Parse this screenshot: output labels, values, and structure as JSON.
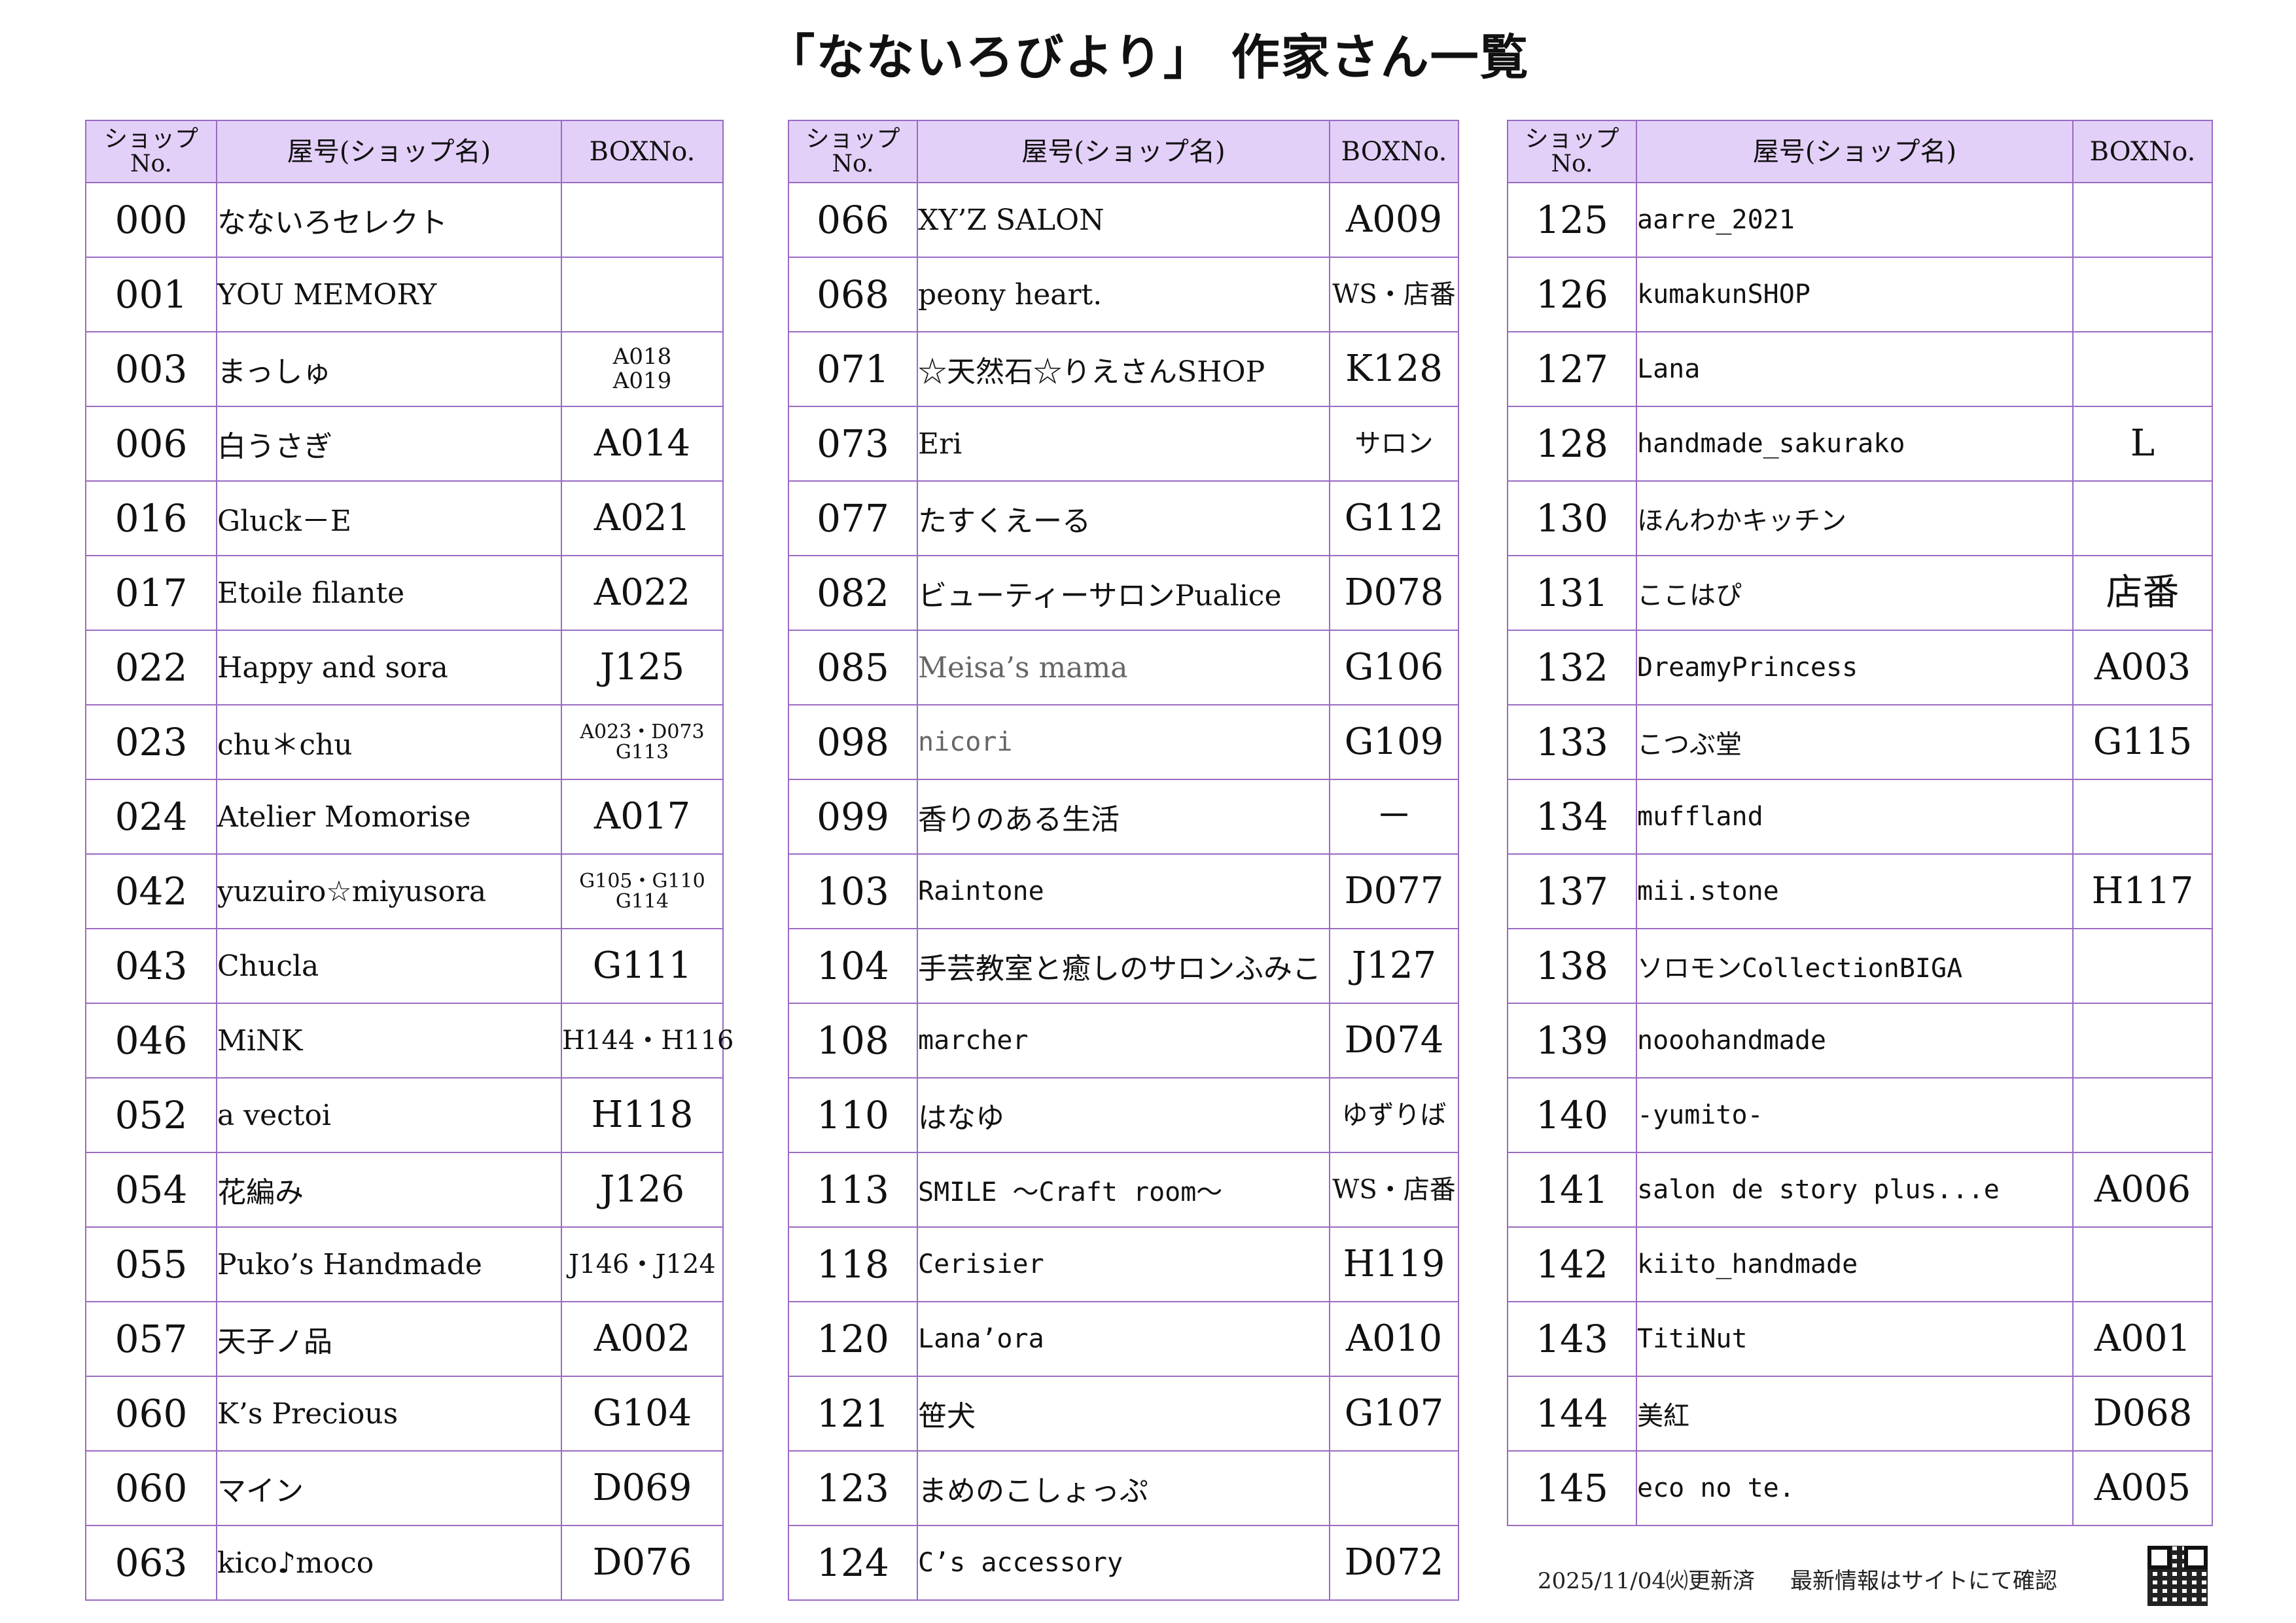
{
  "title": "「なないろびより」 作家さん一覧",
  "headers": {
    "shop_no": [
      "ショップ",
      "No."
    ],
    "name": "屋号(ショップ名)",
    "box": "BOXNo."
  },
  "columns": [
    {
      "rows": [
        {
          "no": "000",
          "name": "なないろセレクト",
          "box": ""
        },
        {
          "no": "001",
          "name": "YOU MEMORY",
          "box": ""
        },
        {
          "no": "003",
          "name": "まっしゅ",
          "box": "A018\nA019"
        },
        {
          "no": "006",
          "name": "白うさぎ",
          "box": "A014"
        },
        {
          "no": "016",
          "name": "Gluck－E",
          "box": "A021"
        },
        {
          "no": "017",
          "name": "Etoile filante",
          "box": "A022"
        },
        {
          "no": "022",
          "name": "Happy and sora",
          "box": "J125"
        },
        {
          "no": "023",
          "name": "chu＊chu",
          "box": "A023・D073\nG113"
        },
        {
          "no": "024",
          "name": "Atelier Momorise",
          "box": "A017"
        },
        {
          "no": "042",
          "name": "yuzuiro☆miyusora",
          "box": "G105・G110\nG114"
        },
        {
          "no": "043",
          "name": "Chucla",
          "box": "G111"
        },
        {
          "no": "046",
          "name": "MiNK",
          "box": "H144・H116"
        },
        {
          "no": "052",
          "name": "a vectoi",
          "box": "H118"
        },
        {
          "no": "054",
          "name": "花編み",
          "box": "J126"
        },
        {
          "no": "055",
          "name": "Puko’s Handmade",
          "box": "J146・J124"
        },
        {
          "no": "057",
          "name": "天子ノ品",
          "box": "A002"
        },
        {
          "no": "060",
          "name": "K’s Precious",
          "box": "G104"
        },
        {
          "no": "060",
          "name": "マイン",
          "box": "D069"
        },
        {
          "no": "063",
          "name": "kico♪moco",
          "box": "D076"
        }
      ]
    },
    {
      "rows": [
        {
          "no": "066",
          "name": "XY’Z SALON",
          "box": "A009"
        },
        {
          "no": "068",
          "name": "peony heart.",
          "box": "WS・店番"
        },
        {
          "no": "071",
          "name": "☆天然石☆りえさんSHOP",
          "box": "K128"
        },
        {
          "no": "073",
          "name": "Eri",
          "box": "サロン"
        },
        {
          "no": "077",
          "name": "たすくえーる",
          "box": "G112"
        },
        {
          "no": "082",
          "name": "ビューティーサロンPualice",
          "box": "D078"
        },
        {
          "no": "085",
          "name": "Meisa’s mama",
          "box": "G106"
        },
        {
          "no": "098",
          "name": "nicori",
          "box": "G109"
        },
        {
          "no": "099",
          "name": "香りのある生活",
          "box": "－"
        },
        {
          "no": "103",
          "name": "Raintone",
          "box": "D077"
        },
        {
          "no": "104",
          "name": "手芸教室と癒しのサロンふみこ",
          "box": "J127"
        },
        {
          "no": "108",
          "name": "marcher",
          "box": "D074"
        },
        {
          "no": "110",
          "name": "はなゆ",
          "box": "ゆずりば"
        },
        {
          "no": "113",
          "name": "SMILE ～Craft room～",
          "box": "WS・店番"
        },
        {
          "no": "118",
          "name": "Cerisier",
          "box": "H119"
        },
        {
          "no": "120",
          "name": "Lana’ora",
          "box": "A010"
        },
        {
          "no": "121",
          "name": "笹犬",
          "box": "G107"
        },
        {
          "no": "123",
          "name": "まめのこしょっぷ",
          "box": ""
        },
        {
          "no": "124",
          "name": "C’s accessory",
          "box": "D072"
        }
      ]
    },
    {
      "rows": [
        {
          "no": "125",
          "name": "aarre_2021",
          "box": ""
        },
        {
          "no": "126",
          "name": "kumakunSHOP",
          "box": ""
        },
        {
          "no": "127",
          "name": "Lana",
          "box": ""
        },
        {
          "no": "128",
          "name": "handmade_sakurako",
          "box": "L"
        },
        {
          "no": "130",
          "name": "ほんわかキッチン",
          "box": ""
        },
        {
          "no": "131",
          "name": "ここはぴ",
          "box": "店番"
        },
        {
          "no": "132",
          "name": "DreamyPrincess",
          "box": "A003"
        },
        {
          "no": "133",
          "name": "こつぶ堂",
          "box": "G115"
        },
        {
          "no": "134",
          "name": "muffland",
          "box": ""
        },
        {
          "no": "137",
          "name": "mii.stone",
          "box": "H117"
        },
        {
          "no": "138",
          "name": "ソロモンCollectionBIGA",
          "box": ""
        },
        {
          "no": "139",
          "name": "nooohandmade",
          "box": ""
        },
        {
          "no": "140",
          "name": "-yumito-",
          "box": ""
        },
        {
          "no": "141",
          "name": "salon de story plus...e",
          "box": "A006"
        },
        {
          "no": "142",
          "name": "kiito_handmade",
          "box": ""
        },
        {
          "no": "143",
          "name": "TitiNut",
          "box": "A001"
        },
        {
          "no": "144",
          "name": "美紅",
          "box": "D068"
        },
        {
          "no": "145",
          "name": "eco no te.",
          "box": "A005"
        }
      ]
    }
  ],
  "footer": {
    "updated": "2025/11/04㈫更新済",
    "note": "最新情報はサイトにて確認"
  },
  "qr_icon": "qr-code-icon"
}
